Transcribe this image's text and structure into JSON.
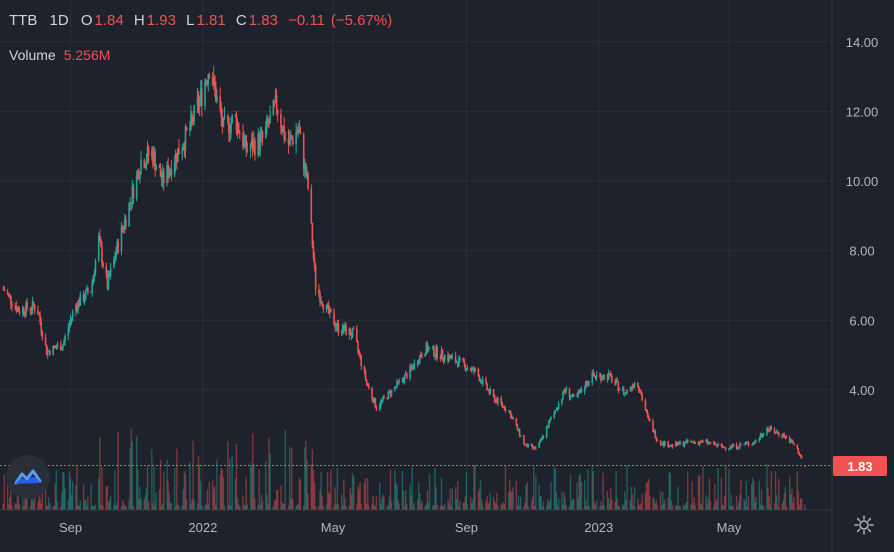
{
  "header": {
    "symbol": "TTB",
    "timeframe": "1D",
    "open_label": "O",
    "open": "1.84",
    "high_label": "H",
    "high": "1.93",
    "low_label": "L",
    "low": "1.81",
    "close_label": "C",
    "close": "1.83",
    "change": "−0.11",
    "change_pct": "(−5.67%)"
  },
  "volume": {
    "label": "Volume",
    "value": "5.256M"
  },
  "last_price": "1.83",
  "colors": {
    "up": "#26a69a",
    "down": "#ef5350",
    "background": "#1e222d",
    "grid": "#2a2e39",
    "text": "#b2b5be"
  },
  "chart_data": {
    "type": "candlestick",
    "title": "TTB 1D",
    "y_axis_ticks": [
      "14.00",
      "12.00",
      "10.00",
      "8.00",
      "6.00",
      "4.00"
    ],
    "y_ticks_values": [
      14,
      12,
      10,
      8,
      6,
      4
    ],
    "ylim": [
      0.55,
      15.2
    ],
    "x_axis_ticks": [
      "Sep",
      "2022",
      "May",
      "Sep",
      "2023",
      "May"
    ],
    "x_axis_tick_dates": [
      "2021-09-01",
      "2022-01-01",
      "2022-05-01",
      "2022-09-01",
      "2023-01-01",
      "2023-05-01"
    ],
    "xlim": [
      "2021-06-28",
      "2023-08-04"
    ],
    "last_date": "2023-07-10",
    "last_close": 1.83,
    "close_path_points": [
      [
        "2021-07-01",
        6.9
      ],
      [
        "2021-07-15",
        6.3
      ],
      [
        "2021-08-01",
        6.4
      ],
      [
        "2021-08-10",
        5.1
      ],
      [
        "2021-08-25",
        5.3
      ],
      [
        "2021-09-05",
        6.4
      ],
      [
        "2021-09-20",
        6.9
      ],
      [
        "2021-09-27",
        8.3
      ],
      [
        "2021-10-05",
        7.0
      ],
      [
        "2021-10-15",
        8.2
      ],
      [
        "2021-10-25",
        9.3
      ],
      [
        "2021-11-05",
        10.6
      ],
      [
        "2021-11-15",
        10.8
      ],
      [
        "2021-11-25",
        10.0
      ],
      [
        "2021-12-10",
        10.9
      ],
      [
        "2021-12-20",
        11.5
      ],
      [
        "2021-12-31",
        12.5
      ],
      [
        "2022-01-07",
        13.3
      ],
      [
        "2022-01-20",
        11.5
      ],
      [
        "2022-01-31",
        11.8
      ],
      [
        "2022-02-10",
        10.9
      ],
      [
        "2022-02-25",
        11.2
      ],
      [
        "2022-03-10",
        12.2
      ],
      [
        "2022-03-20",
        11.0
      ],
      [
        "2022-03-30",
        11.5
      ],
      [
        "2022-04-08",
        9.8
      ],
      [
        "2022-04-15",
        7.0
      ],
      [
        "2022-04-25",
        6.3
      ],
      [
        "2022-05-05",
        5.8
      ],
      [
        "2022-05-20",
        5.6
      ],
      [
        "2022-06-01",
        4.2
      ],
      [
        "2022-06-10",
        3.5
      ],
      [
        "2022-06-25",
        4.0
      ],
      [
        "2022-07-10",
        4.5
      ],
      [
        "2022-07-25",
        5.2
      ],
      [
        "2022-08-10",
        5.0
      ],
      [
        "2022-08-25",
        4.8
      ],
      [
        "2022-09-10",
        4.5
      ],
      [
        "2022-09-25",
        3.8
      ],
      [
        "2022-10-10",
        3.4
      ],
      [
        "2022-10-25",
        2.4
      ],
      [
        "2022-11-05",
        2.3
      ],
      [
        "2022-11-20",
        3.3
      ],
      [
        "2022-12-01",
        4.0
      ],
      [
        "2022-12-10",
        3.7
      ],
      [
        "2022-12-25",
        4.4
      ],
      [
        "2023-01-10",
        4.4
      ],
      [
        "2023-01-25",
        3.9
      ],
      [
        "2023-02-05",
        4.3
      ],
      [
        "2023-02-15",
        3.2
      ],
      [
        "2023-02-25",
        2.5
      ],
      [
        "2023-03-10",
        2.4
      ],
      [
        "2023-03-25",
        2.5
      ],
      [
        "2023-04-10",
        2.5
      ],
      [
        "2023-04-25",
        2.35
      ],
      [
        "2023-05-10",
        2.4
      ],
      [
        "2023-05-25",
        2.5
      ],
      [
        "2023-06-05",
        2.9
      ],
      [
        "2023-06-20",
        2.7
      ],
      [
        "2023-07-01",
        2.4
      ],
      [
        "2023-07-10",
        1.83
      ]
    ],
    "volume_level": "relative (unitless)"
  }
}
